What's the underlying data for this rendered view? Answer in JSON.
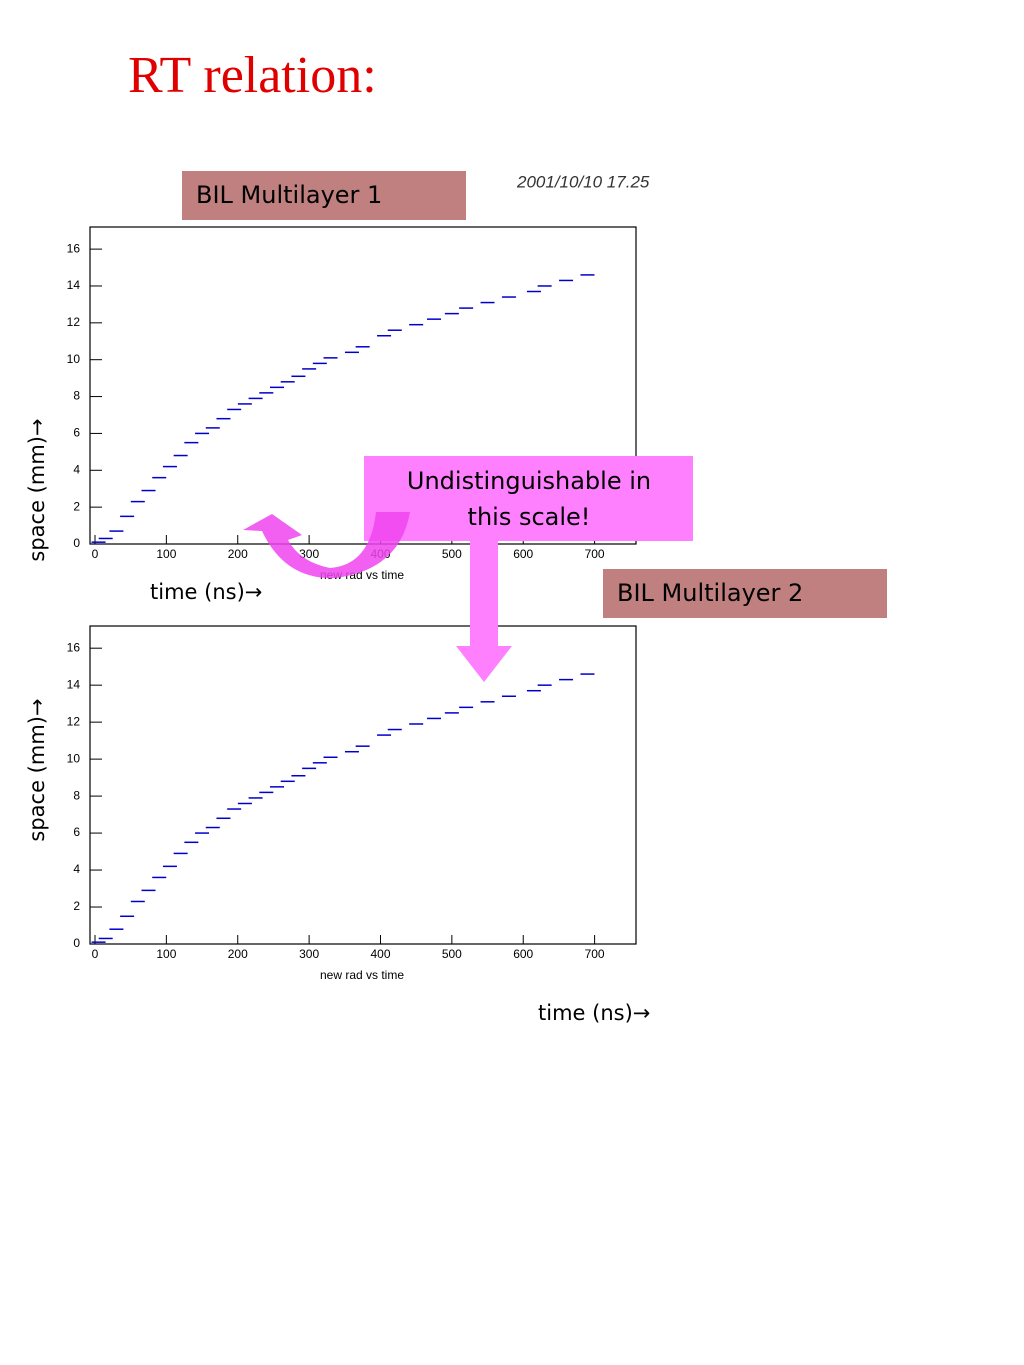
{
  "title": "RT relation:",
  "date": "2001/10/10   17.25",
  "annotation": [
    "Undistinguishable in",
    "this scale!"
  ],
  "chart_data": [
    {
      "type": "scatter",
      "title": "BIL Multilayer 1",
      "histogram_title": "new rad vs time",
      "x_axis_title": "time (ns)→",
      "y_axis_title": "space (mm)→",
      "color": "#0000cc",
      "x": [
        5,
        15,
        30,
        45,
        60,
        75,
        90,
        105,
        120,
        135,
        150,
        165,
        180,
        195,
        210,
        225,
        240,
        255,
        270,
        285,
        300,
        315,
        330,
        360,
        375,
        405,
        420,
        450,
        475,
        500,
        520,
        550,
        580,
        615,
        630,
        660,
        690
      ],
      "values": [
        0.1,
        0.3,
        0.7,
        1.5,
        2.3,
        2.9,
        3.6,
        4.2,
        4.8,
        5.5,
        6.0,
        6.3,
        6.8,
        7.3,
        7.6,
        7.9,
        8.2,
        8.5,
        8.8,
        9.1,
        9.5,
        9.8,
        10.1,
        10.4,
        10.7,
        11.3,
        11.6,
        11.9,
        12.2,
        12.5,
        12.8,
        13.1,
        13.4,
        13.7,
        14.0,
        14.3,
        14.6
      ],
      "xlim": [
        -7,
        758
      ],
      "ylim": [
        0,
        17.2
      ],
      "xticks": [
        0,
        100,
        200,
        300,
        400,
        500,
        600,
        700
      ],
      "yticks": [
        0,
        2,
        4,
        6,
        8,
        10,
        12,
        14,
        16
      ]
    },
    {
      "type": "scatter",
      "title": "BIL Multilayer 2",
      "histogram_title": "new rad vs time",
      "x_axis_title": "time (ns)→",
      "y_axis_title": "space (mm)→",
      "color": "#0000cc",
      "x": [
        5,
        15,
        30,
        45,
        60,
        75,
        90,
        105,
        120,
        135,
        150,
        165,
        180,
        195,
        210,
        225,
        240,
        255,
        270,
        285,
        300,
        315,
        330,
        360,
        375,
        405,
        420,
        450,
        475,
        500,
        520,
        550,
        580,
        615,
        630,
        660,
        690
      ],
      "values": [
        0.1,
        0.3,
        0.8,
        1.5,
        2.3,
        2.9,
        3.6,
        4.2,
        4.9,
        5.5,
        6.0,
        6.3,
        6.8,
        7.3,
        7.6,
        7.9,
        8.2,
        8.5,
        8.8,
        9.1,
        9.5,
        9.8,
        10.1,
        10.4,
        10.7,
        11.3,
        11.6,
        11.9,
        12.2,
        12.5,
        12.8,
        13.1,
        13.4,
        13.7,
        14.0,
        14.3,
        14.6
      ],
      "xlim": [
        -7,
        758
      ],
      "ylim": [
        0,
        17.2
      ],
      "xticks": [
        0,
        100,
        200,
        300,
        400,
        500,
        600,
        700
      ],
      "yticks": [
        0,
        2,
        4,
        6,
        8,
        10,
        12,
        14,
        16
      ]
    }
  ]
}
